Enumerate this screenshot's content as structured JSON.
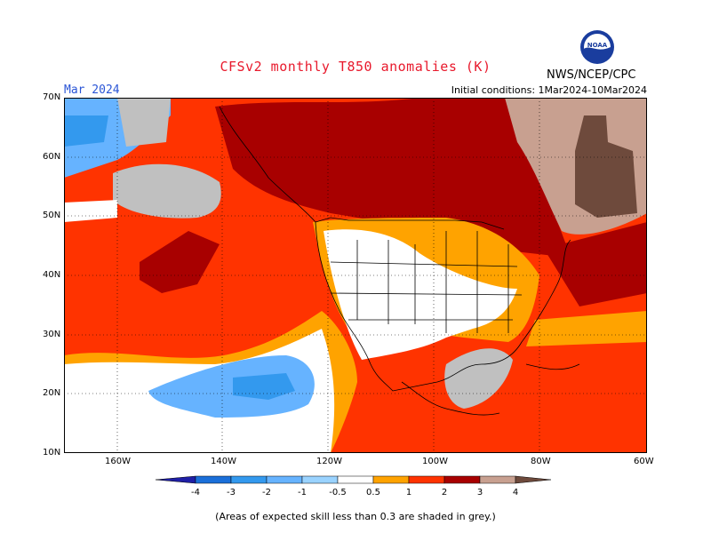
{
  "header": {
    "title": "CFSv2 monthly T850 anomalies (K)",
    "month": "Mar 2024",
    "initial_conditions": "Initial conditions: 1Mar2024-10Mar2024",
    "agency": "NWS/NCEP/CPC",
    "logo_text": "NOAA"
  },
  "axes": {
    "lat_labels": [
      "70N",
      "60N",
      "50N",
      "40N",
      "30N",
      "20N",
      "10N"
    ],
    "lon_labels": [
      "160W",
      "140W",
      "120W",
      "100W",
      "80W",
      "60W"
    ]
  },
  "legend": {
    "labels": [
      "-4",
      "-3",
      "-2",
      "-1",
      "-0.5",
      "0.5",
      "1",
      "2",
      "3",
      "4"
    ],
    "colors": [
      "#1f1fa6",
      "#1a6fd9",
      "#3399ee",
      "#66b3ff",
      "#9ad3ff",
      "#ffffff",
      "#ffa300",
      "#ff3300",
      "#a80000",
      "#c8a090",
      "#6e4a3c"
    ],
    "note": "(Areas of expected skill less than 0.3 are shaded in grey.)"
  },
  "colors": {
    "title": "#e8192c",
    "month": "#2a55d6",
    "skill_grey": "#c0c0c0"
  }
}
